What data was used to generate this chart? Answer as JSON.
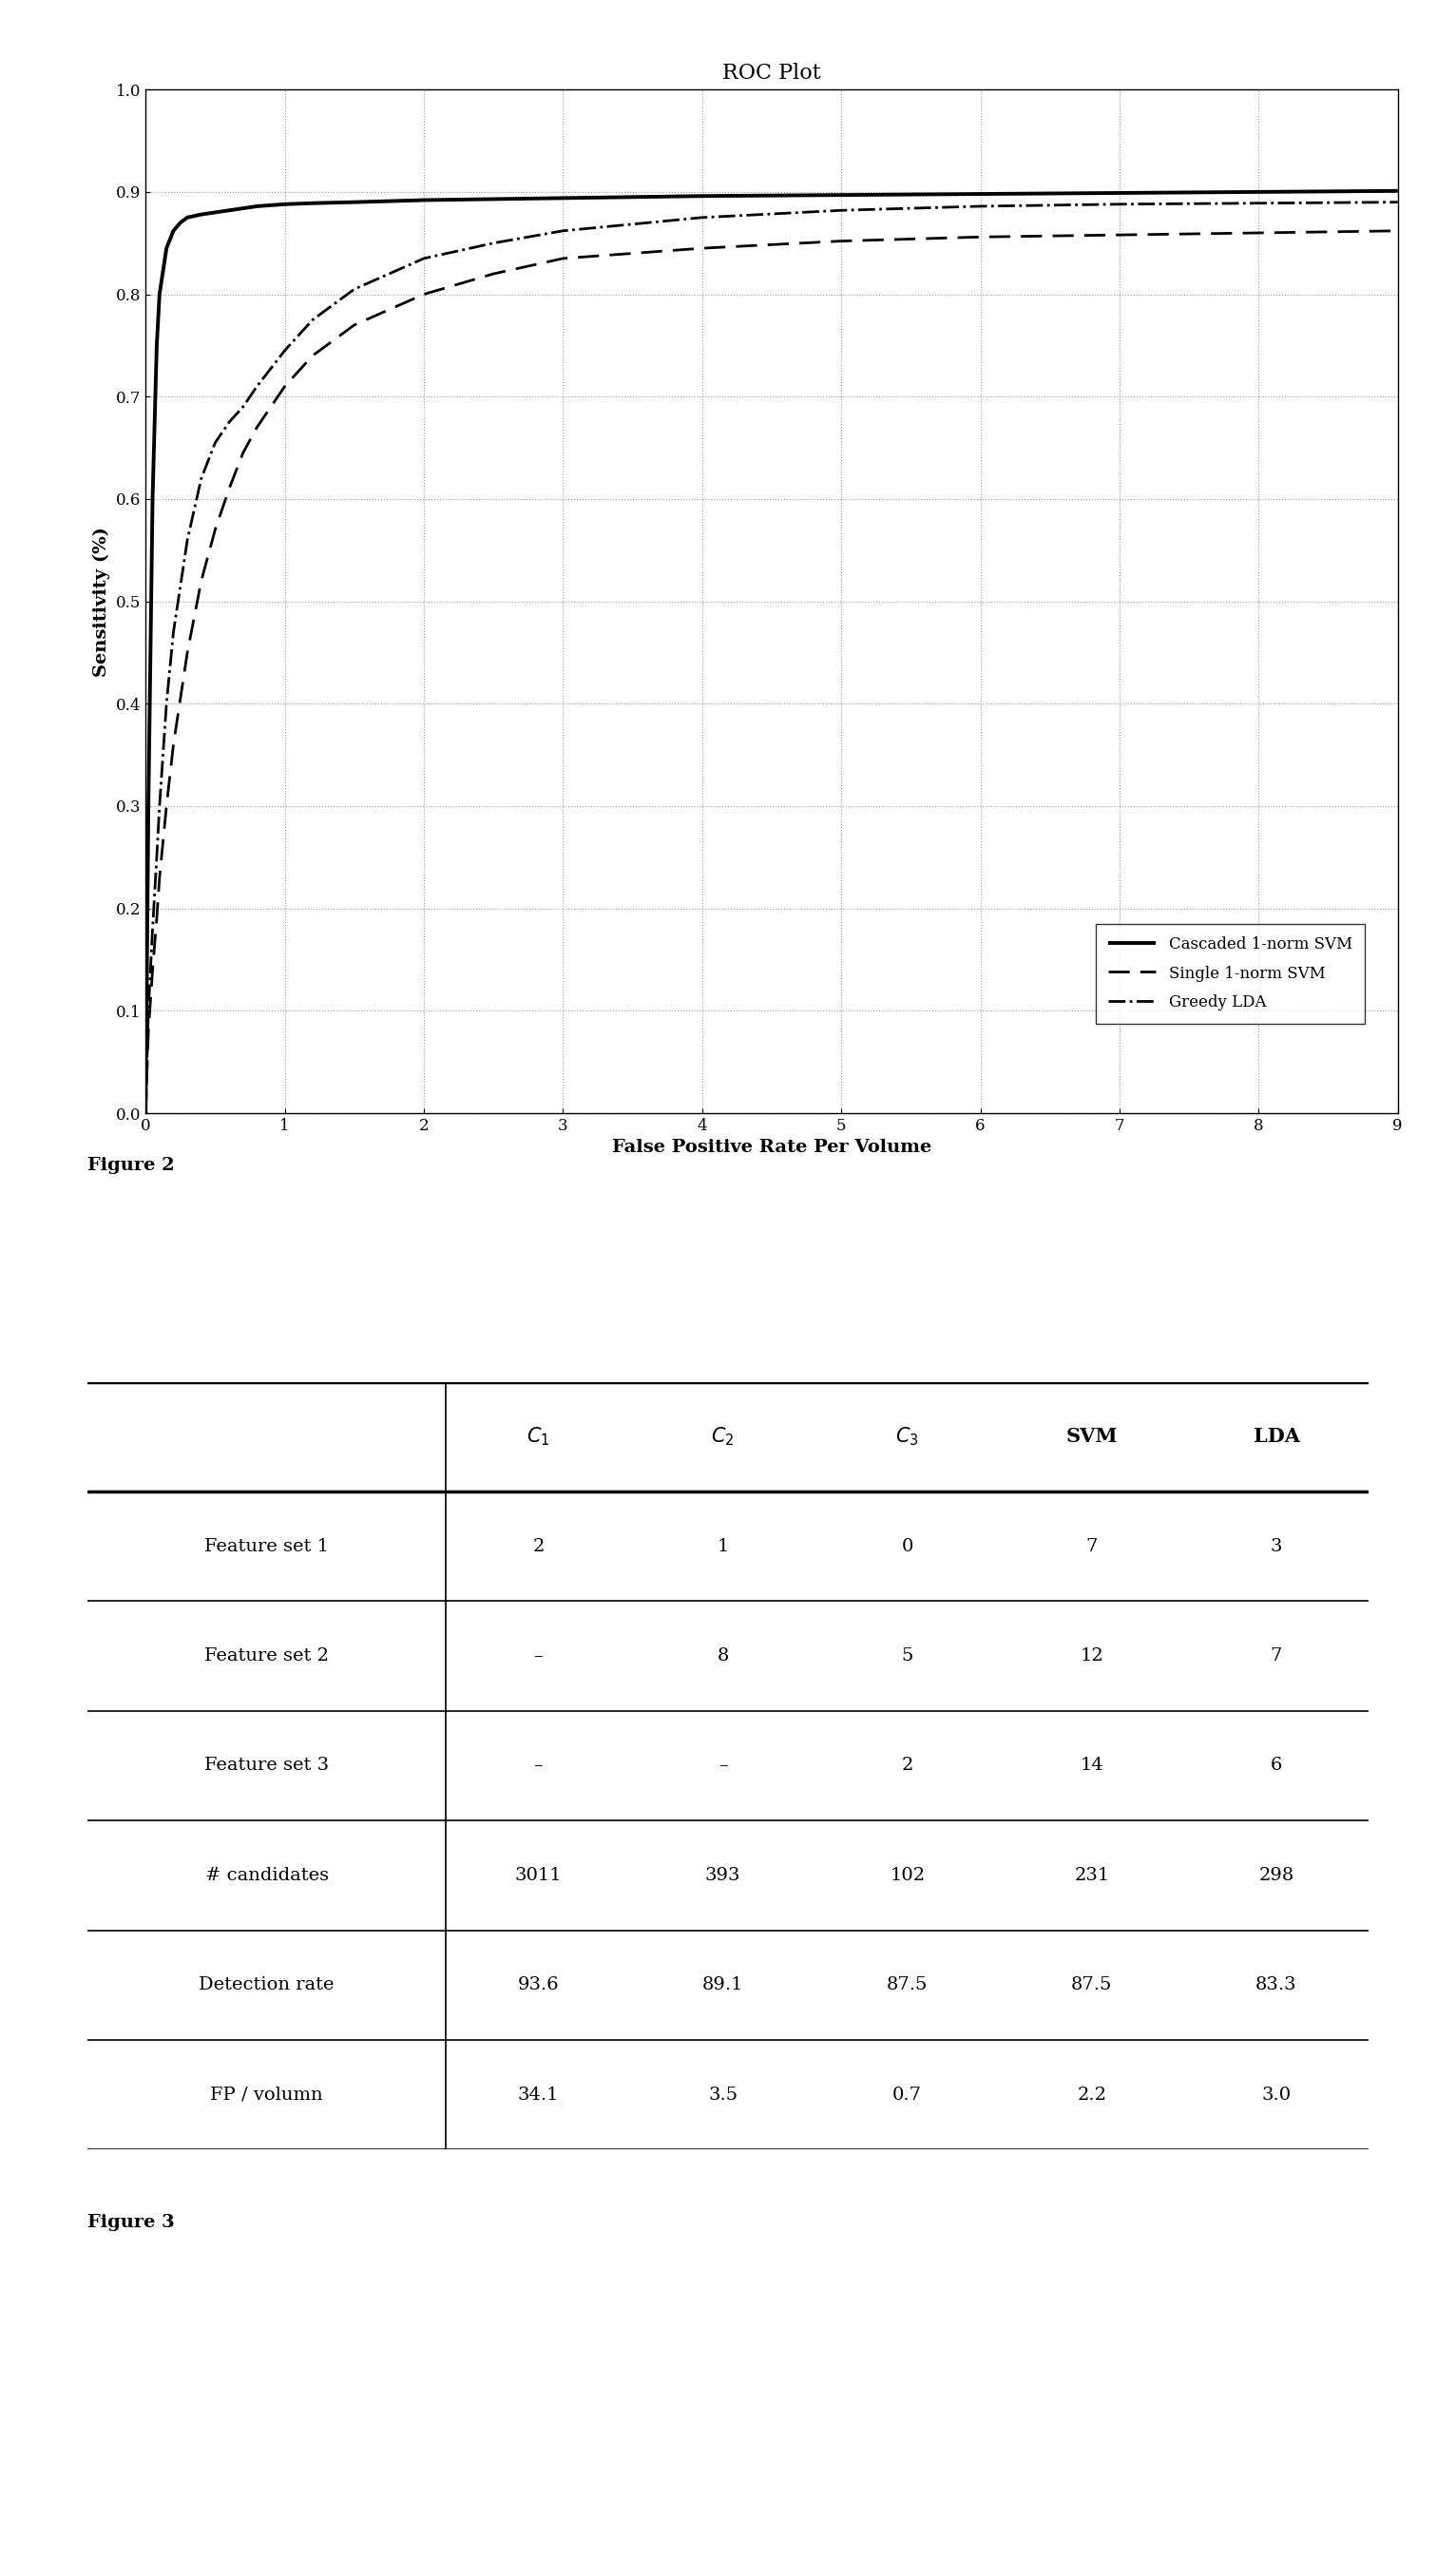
{
  "title": "ROC Plot",
  "xlabel": "False Positive Rate Per Volume",
  "ylabel": "Sensitivity (%)",
  "xlim": [
    0,
    9
  ],
  "ylim": [
    0,
    1.0
  ],
  "yticks": [
    0,
    0.1,
    0.2,
    0.3,
    0.4,
    0.5,
    0.6,
    0.7,
    0.8,
    0.9,
    1.0
  ],
  "xticks": [
    0,
    1,
    2,
    3,
    4,
    5,
    6,
    7,
    8,
    9
  ],
  "cascaded_svm_x": [
    0.0,
    0.02,
    0.05,
    0.08,
    0.1,
    0.15,
    0.2,
    0.25,
    0.3,
    0.4,
    0.5,
    0.6,
    0.7,
    0.8,
    0.9,
    1.0,
    1.2,
    1.5,
    2.0,
    2.5,
    3.0,
    4.0,
    5.0,
    6.0,
    7.0,
    8.0,
    9.0
  ],
  "cascaded_svm_y": [
    0.0,
    0.3,
    0.6,
    0.75,
    0.8,
    0.845,
    0.862,
    0.87,
    0.875,
    0.878,
    0.88,
    0.882,
    0.884,
    0.886,
    0.887,
    0.888,
    0.889,
    0.89,
    0.892,
    0.893,
    0.894,
    0.896,
    0.897,
    0.898,
    0.899,
    0.9,
    0.901
  ],
  "single_svm_x": [
    0.0,
    0.02,
    0.05,
    0.08,
    0.1,
    0.15,
    0.2,
    0.3,
    0.4,
    0.5,
    0.6,
    0.7,
    0.8,
    1.0,
    1.2,
    1.5,
    2.0,
    2.5,
    3.0,
    4.0,
    5.0,
    6.0,
    7.0,
    8.0,
    9.0
  ],
  "single_svm_y": [
    0.0,
    0.08,
    0.14,
    0.19,
    0.23,
    0.3,
    0.36,
    0.45,
    0.52,
    0.57,
    0.61,
    0.645,
    0.67,
    0.71,
    0.74,
    0.77,
    0.8,
    0.82,
    0.835,
    0.845,
    0.852,
    0.856,
    0.858,
    0.86,
    0.862
  ],
  "greedy_lda_x": [
    0.0,
    0.02,
    0.05,
    0.08,
    0.1,
    0.15,
    0.2,
    0.3,
    0.4,
    0.5,
    0.6,
    0.7,
    0.8,
    1.0,
    1.2,
    1.5,
    2.0,
    2.5,
    3.0,
    4.0,
    5.0,
    6.0,
    7.0,
    8.0,
    9.0
  ],
  "greedy_lda_y": [
    0.0,
    0.1,
    0.18,
    0.25,
    0.3,
    0.4,
    0.47,
    0.56,
    0.62,
    0.655,
    0.675,
    0.69,
    0.71,
    0.745,
    0.775,
    0.805,
    0.835,
    0.85,
    0.862,
    0.875,
    0.882,
    0.886,
    0.888,
    0.889,
    0.89
  ],
  "legend_labels": [
    "Cascaded 1-norm SVM",
    "Single 1-norm SVM",
    "Greedy LDA"
  ],
  "figure2_label": "Figure 2",
  "figure3_label": "Figure 3",
  "table_col_headers": [
    "$C_1$",
    "$C_2$",
    "$C_3$",
    "SVM",
    "LDA"
  ],
  "table_row_headers": [
    "Feature set 1",
    "Feature set 2",
    "Feature set 3",
    "# candidates",
    "Detection rate",
    "FP / volumn"
  ],
  "table_data": [
    [
      "2",
      "1",
      "0",
      "7",
      "3"
    ],
    [
      "–",
      "8",
      "5",
      "12",
      "7"
    ],
    [
      "–",
      "–",
      "2",
      "14",
      "6"
    ],
    [
      "3011",
      "393",
      "102",
      "231",
      "298"
    ],
    [
      "93.6",
      "89.1",
      "87.5",
      "87.5",
      "83.3"
    ],
    [
      "34.1",
      "3.5",
      "0.7",
      "2.2",
      "3.0"
    ]
  ]
}
